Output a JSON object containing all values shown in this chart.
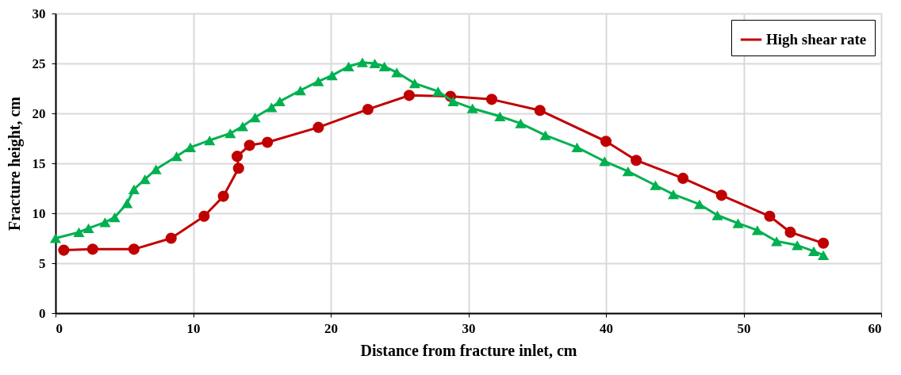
{
  "chart_data": {
    "type": "line",
    "xlabel": "Distance from fracture inlet, cm",
    "ylabel": "Fracture height, cm",
    "xlim": [
      0,
      60
    ],
    "xticks": [
      0,
      10,
      20,
      30,
      40,
      50,
      60
    ],
    "ylim": [
      0,
      30
    ],
    "yticks": [
      0,
      5,
      10,
      15,
      20,
      25,
      30
    ],
    "grid": true,
    "legend": "top right",
    "line_style": "solid",
    "series": [
      {
        "name": "High shear rate",
        "color": "#c00000",
        "marker": "circle",
        "x": [
          0.6,
          2.7,
          5.7,
          8.4,
          10.8,
          12.2,
          13.3,
          13.2,
          14.1,
          15.4,
          19.1,
          22.7,
          25.7,
          28.7,
          31.7,
          35.2,
          40.0,
          42.2,
          45.6,
          48.4,
          51.9,
          53.4,
          55.8
        ],
        "values": [
          6.3,
          6.4,
          6.4,
          7.5,
          9.7,
          11.7,
          14.5,
          15.7,
          16.8,
          17.1,
          18.6,
          20.4,
          21.8,
          21.7,
          21.4,
          20.3,
          17.2,
          15.3,
          13.5,
          11.8,
          9.7,
          8.1,
          7.0
        ]
      },
      {
        "color": "#00b050",
        "marker": "triangle",
        "x": [
          0,
          1.7,
          2.4,
          3.6,
          4.3,
          5.2,
          5.7,
          6.5,
          7.3,
          8.8,
          9.8,
          11.2,
          12.7,
          13.6,
          14.5,
          15.7,
          16.3,
          17.8,
          19.1,
          20.1,
          21.3,
          22.3,
          23.2,
          23.9,
          24.8,
          26.1,
          27.8,
          28.9,
          30.3,
          32.3,
          33.8,
          35.6,
          37.9,
          39.9,
          41.6,
          43.6,
          44.9,
          46.8,
          48.1,
          49.6,
          51.0,
          52.4,
          53.9,
          55.1,
          55.8
        ],
        "values": [
          7.5,
          8.1,
          8.5,
          9.1,
          9.6,
          11.0,
          12.4,
          13.4,
          14.4,
          15.7,
          16.6,
          17.3,
          18.0,
          18.7,
          19.6,
          20.6,
          21.2,
          22.3,
          23.2,
          23.8,
          24.7,
          25.1,
          25.0,
          24.7,
          24.1,
          23.0,
          22.2,
          21.2,
          20.5,
          19.7,
          19.0,
          17.8,
          16.6,
          15.2,
          14.2,
          12.8,
          11.9,
          10.9,
          9.8,
          9.0,
          8.3,
          7.2,
          6.8,
          6.2,
          5.8
        ]
      }
    ]
  }
}
